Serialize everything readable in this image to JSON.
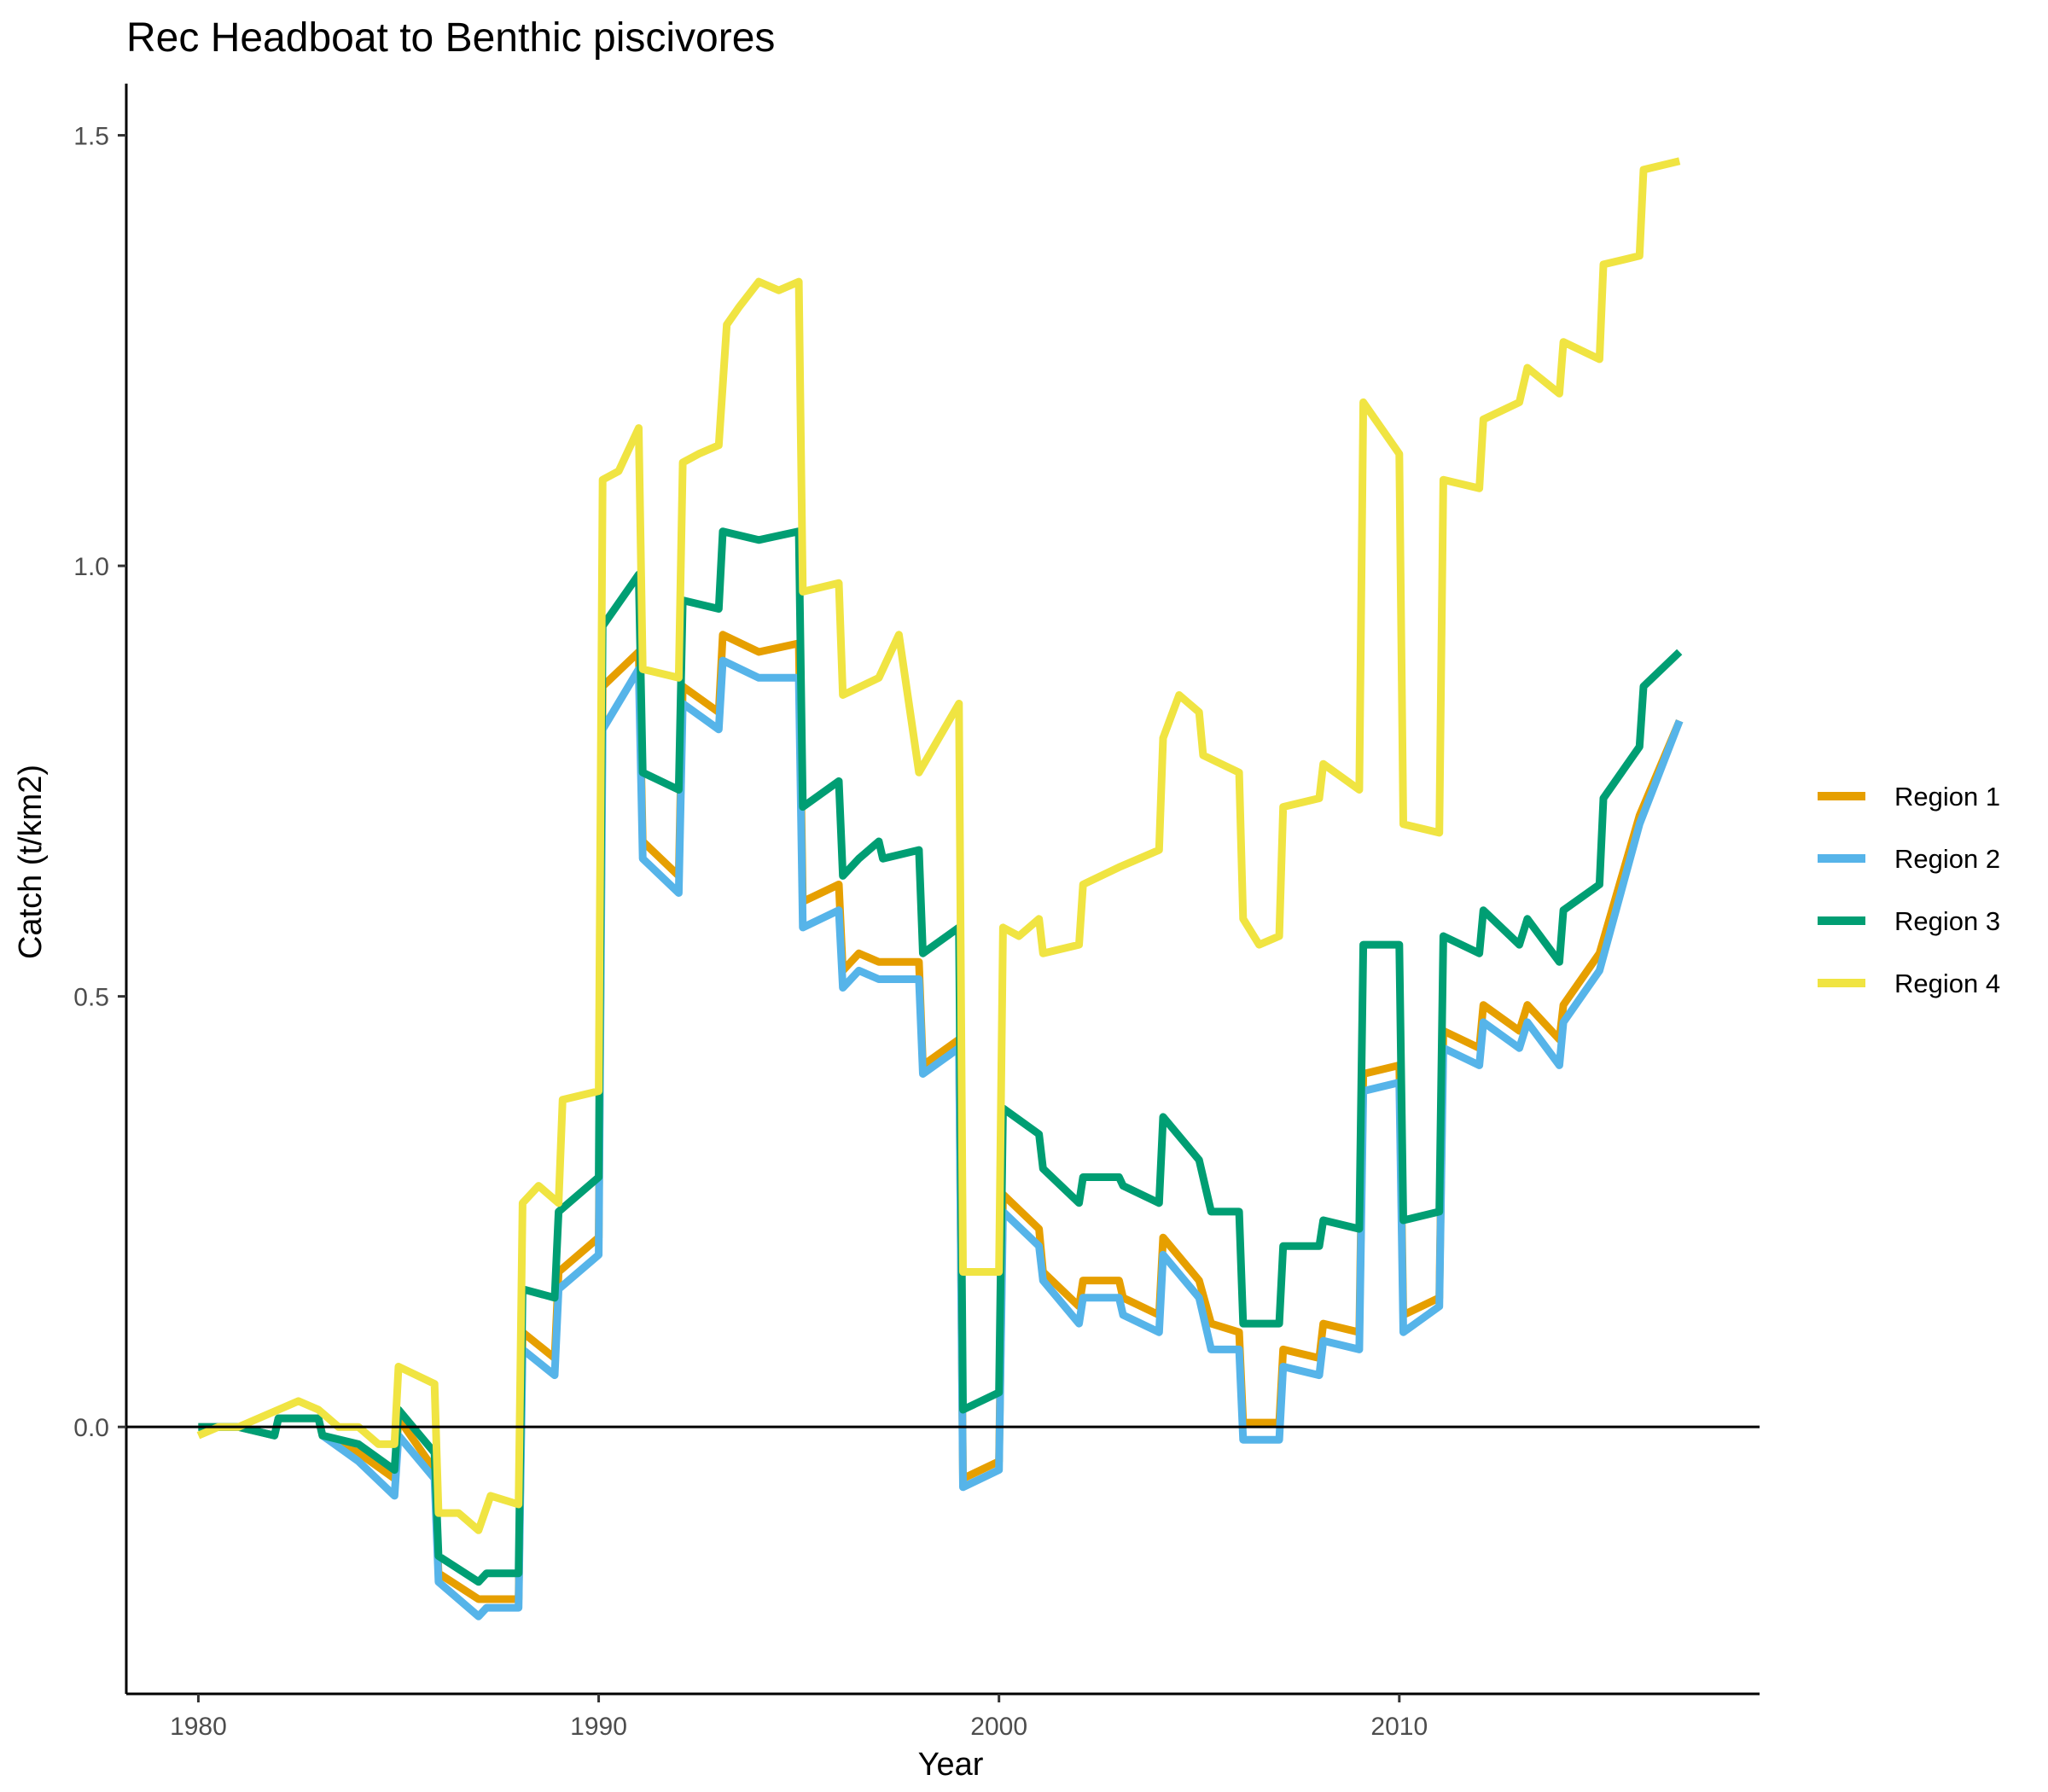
{
  "chart_data": {
    "type": "line",
    "title": "Rec Headboat to Benthic piscivores",
    "xlabel": "Year",
    "ylabel": "Catch (t/km2)",
    "xlim": [
      1978.2,
      2019
    ],
    "ylim": [
      -0.31,
      1.56
    ],
    "x_ticks": [
      1980,
      1990,
      2000,
      2010
    ],
    "y_ticks": [
      0.0,
      0.5,
      1.0,
      1.5
    ],
    "x_tick_labels": [
      "1980",
      "1990",
      "2000",
      "2010"
    ],
    "y_tick_labels": [
      "0.0",
      "0.5",
      "1.0",
      "1.5"
    ],
    "reference_line_y": 0,
    "grid": false,
    "legend_position": "right",
    "series": [
      {
        "name": "Region 1",
        "color": "#E69F00",
        "points": [
          [
            1980,
            0
          ],
          [
            1981,
            0
          ],
          [
            1981.9,
            -0.01
          ],
          [
            1982,
            0.01
          ],
          [
            1983,
            0.01
          ],
          [
            1983.1,
            -0.01
          ],
          [
            1984,
            -0.03
          ],
          [
            1984.9,
            -0.06
          ],
          [
            1985,
            0.01
          ],
          [
            1985.9,
            -0.05
          ],
          [
            1986,
            -0.17
          ],
          [
            1987,
            -0.2
          ],
          [
            1988,
            -0.2
          ],
          [
            1988.1,
            0.11
          ],
          [
            1988.9,
            0.08
          ],
          [
            1989,
            0.18
          ],
          [
            1990,
            0.22
          ],
          [
            1990.1,
            0.86
          ],
          [
            1991,
            0.9
          ],
          [
            1991.1,
            0.68
          ],
          [
            1992,
            0.64
          ],
          [
            1992.1,
            0.86
          ],
          [
            1993,
            0.83
          ],
          [
            1993.1,
            0.92
          ],
          [
            1994,
            0.9
          ],
          [
            1995,
            0.91
          ],
          [
            1995.1,
            0.61
          ],
          [
            1996,
            0.63
          ],
          [
            1996.1,
            0.53
          ],
          [
            1996.5,
            0.55
          ],
          [
            1997,
            0.54
          ],
          [
            1998,
            0.54
          ],
          [
            1998.1,
            0.42
          ],
          [
            1999,
            0.45
          ],
          [
            1999.1,
            -0.06
          ],
          [
            2000,
            -0.04
          ],
          [
            2000.1,
            0.27
          ],
          [
            2001,
            0.23
          ],
          [
            2001.1,
            0.18
          ],
          [
            2002,
            0.14
          ],
          [
            2002.1,
            0.17
          ],
          [
            2003,
            0.17
          ],
          [
            2003.1,
            0.15
          ],
          [
            2004,
            0.13
          ],
          [
            2004.1,
            0.22
          ],
          [
            2005,
            0.17
          ],
          [
            2005.3,
            0.12
          ],
          [
            2006,
            0.11
          ],
          [
            2006.1,
            0.005
          ],
          [
            2007,
            0.005
          ],
          [
            2007.1,
            0.09
          ],
          [
            2008,
            0.08
          ],
          [
            2008.1,
            0.12
          ],
          [
            2009,
            0.11
          ],
          [
            2009.1,
            0.41
          ],
          [
            2010,
            0.42
          ],
          [
            2010.1,
            0.13
          ],
          [
            2011,
            0.15
          ],
          [
            2011.1,
            0.46
          ],
          [
            2012,
            0.44
          ],
          [
            2012.1,
            0.49
          ],
          [
            2013,
            0.46
          ],
          [
            2013.2,
            0.49
          ],
          [
            2014,
            0.45
          ],
          [
            2014.1,
            0.49
          ],
          [
            2015,
            0.55
          ],
          [
            2016,
            0.71
          ],
          [
            2017,
            0.82
          ]
        ]
      },
      {
        "name": "Region 2",
        "color": "#56B4E9",
        "points": [
          [
            1980,
            0
          ],
          [
            1981,
            0
          ],
          [
            1981.9,
            -0.01
          ],
          [
            1982,
            0.01
          ],
          [
            1983,
            0.01
          ],
          [
            1983.1,
            -0.01
          ],
          [
            1984,
            -0.04
          ],
          [
            1984.9,
            -0.08
          ],
          [
            1985,
            -0.01
          ],
          [
            1985.9,
            -0.06
          ],
          [
            1986,
            -0.18
          ],
          [
            1987,
            -0.22
          ],
          [
            1987.2,
            -0.21
          ],
          [
            1988,
            -0.21
          ],
          [
            1988.1,
            0.09
          ],
          [
            1988.9,
            0.06
          ],
          [
            1989,
            0.16
          ],
          [
            1990,
            0.2
          ],
          [
            1990.1,
            0.81
          ],
          [
            1991,
            0.88
          ],
          [
            1991.1,
            0.66
          ],
          [
            1992,
            0.62
          ],
          [
            1992.1,
            0.84
          ],
          [
            1993,
            0.81
          ],
          [
            1993.1,
            0.89
          ],
          [
            1994,
            0.87
          ],
          [
            1995,
            0.87
          ],
          [
            1995.1,
            0.58
          ],
          [
            1996,
            0.6
          ],
          [
            1996.1,
            0.51
          ],
          [
            1996.5,
            0.53
          ],
          [
            1997,
            0.52
          ],
          [
            1998,
            0.52
          ],
          [
            1998.1,
            0.41
          ],
          [
            1999,
            0.44
          ],
          [
            1999.1,
            -0.07
          ],
          [
            2000,
            -0.05
          ],
          [
            2000.1,
            0.25
          ],
          [
            2001,
            0.21
          ],
          [
            2001.1,
            0.17
          ],
          [
            2002,
            0.12
          ],
          [
            2002.1,
            0.15
          ],
          [
            2003,
            0.15
          ],
          [
            2003.1,
            0.13
          ],
          [
            2004,
            0.11
          ],
          [
            2004.1,
            0.2
          ],
          [
            2005,
            0.15
          ],
          [
            2005.3,
            0.09
          ],
          [
            2006,
            0.09
          ],
          [
            2006.1,
            -0.015
          ],
          [
            2007,
            -0.015
          ],
          [
            2007.1,
            0.07
          ],
          [
            2008,
            0.06
          ],
          [
            2008.1,
            0.1
          ],
          [
            2009,
            0.09
          ],
          [
            2009.1,
            0.39
          ],
          [
            2010,
            0.4
          ],
          [
            2010.1,
            0.11
          ],
          [
            2011,
            0.14
          ],
          [
            2011.1,
            0.44
          ],
          [
            2012,
            0.42
          ],
          [
            2012.1,
            0.47
          ],
          [
            2013,
            0.44
          ],
          [
            2013.2,
            0.47
          ],
          [
            2014,
            0.42
          ],
          [
            2014.1,
            0.47
          ],
          [
            2015,
            0.53
          ],
          [
            2016,
            0.7
          ],
          [
            2017,
            0.82
          ]
        ]
      },
      {
        "name": "Region 3",
        "color": "#009E73",
        "points": [
          [
            1980,
            0
          ],
          [
            1981,
            0
          ],
          [
            1981.9,
            -0.01
          ],
          [
            1982,
            0.01
          ],
          [
            1983,
            0.01
          ],
          [
            1983.1,
            -0.01
          ],
          [
            1984,
            -0.02
          ],
          [
            1984.9,
            -0.05
          ],
          [
            1985,
            0.02
          ],
          [
            1985.9,
            -0.03
          ],
          [
            1986,
            -0.15
          ],
          [
            1987,
            -0.18
          ],
          [
            1987.2,
            -0.17
          ],
          [
            1988,
            -0.17
          ],
          [
            1988.1,
            0.16
          ],
          [
            1988.9,
            0.15
          ],
          [
            1989,
            0.25
          ],
          [
            1990,
            0.29
          ],
          [
            1990.1,
            0.93
          ],
          [
            1991,
            0.99
          ],
          [
            1991.1,
            0.76
          ],
          [
            1992,
            0.74
          ],
          [
            1992.1,
            0.96
          ],
          [
            1993,
            0.95
          ],
          [
            1993.1,
            1.04
          ],
          [
            1994,
            1.03
          ],
          [
            1995,
            1.04
          ],
          [
            1995.1,
            0.72
          ],
          [
            1996,
            0.75
          ],
          [
            1996.1,
            0.64
          ],
          [
            1996.5,
            0.66
          ],
          [
            1997,
            0.68
          ],
          [
            1997.1,
            0.66
          ],
          [
            1998,
            0.67
          ],
          [
            1998.1,
            0.55
          ],
          [
            1999,
            0.58
          ],
          [
            1999.1,
            0.02
          ],
          [
            2000,
            0.04
          ],
          [
            2000.1,
            0.37
          ],
          [
            2001,
            0.34
          ],
          [
            2001.1,
            0.3
          ],
          [
            2002,
            0.26
          ],
          [
            2002.1,
            0.29
          ],
          [
            2003,
            0.29
          ],
          [
            2003.1,
            0.28
          ],
          [
            2004,
            0.26
          ],
          [
            2004.1,
            0.36
          ],
          [
            2005,
            0.31
          ],
          [
            2005.3,
            0.25
          ],
          [
            2006,
            0.25
          ],
          [
            2006.1,
            0.12
          ],
          [
            2007,
            0.12
          ],
          [
            2007.1,
            0.21
          ],
          [
            2008,
            0.21
          ],
          [
            2008.1,
            0.24
          ],
          [
            2009,
            0.23
          ],
          [
            2009.1,
            0.56
          ],
          [
            2010,
            0.56
          ],
          [
            2010.1,
            0.24
          ],
          [
            2011,
            0.25
          ],
          [
            2011.1,
            0.57
          ],
          [
            2012,
            0.55
          ],
          [
            2012.1,
            0.6
          ],
          [
            2013,
            0.56
          ],
          [
            2013.2,
            0.59
          ],
          [
            2014,
            0.54
          ],
          [
            2014.1,
            0.6
          ],
          [
            2015,
            0.63
          ],
          [
            2015.1,
            0.73
          ],
          [
            2016,
            0.79
          ],
          [
            2016.1,
            0.86
          ],
          [
            2017,
            0.9
          ]
        ]
      },
      {
        "name": "Region 4",
        "color": "#F0E442",
        "points": [
          [
            1980,
            -0.01
          ],
          [
            1980.5,
            0
          ],
          [
            1981,
            0
          ],
          [
            1981.5,
            0.01
          ],
          [
            1982,
            0.02
          ],
          [
            1982.5,
            0.03
          ],
          [
            1983,
            0.02
          ],
          [
            1983.5,
            0
          ],
          [
            1984,
            0
          ],
          [
            1984.5,
            -0.02
          ],
          [
            1984.9,
            -0.02
          ],
          [
            1985,
            0.07
          ],
          [
            1985.9,
            0.05
          ],
          [
            1986,
            -0.1
          ],
          [
            1986.5,
            -0.1
          ],
          [
            1987,
            -0.12
          ],
          [
            1987.3,
            -0.08
          ],
          [
            1988,
            -0.09
          ],
          [
            1988.1,
            0.26
          ],
          [
            1988.5,
            0.28
          ],
          [
            1989,
            0.26
          ],
          [
            1989.1,
            0.38
          ],
          [
            1990,
            0.39
          ],
          [
            1990.1,
            1.1
          ],
          [
            1990.5,
            1.11
          ],
          [
            1991,
            1.16
          ],
          [
            1991.1,
            0.88
          ],
          [
            1992,
            0.87
          ],
          [
            1992.1,
            1.12
          ],
          [
            1992.5,
            1.13
          ],
          [
            1993,
            1.14
          ],
          [
            1993.2,
            1.28
          ],
          [
            1993.5,
            1.3
          ],
          [
            1994,
            1.33
          ],
          [
            1994.5,
            1.32
          ],
          [
            1995,
            1.33
          ],
          [
            1995.1,
            0.97
          ],
          [
            1996,
            0.98
          ],
          [
            1996.1,
            0.85
          ],
          [
            1997,
            0.87
          ],
          [
            1997.5,
            0.92
          ],
          [
            1998,
            0.76
          ],
          [
            1998.5,
            0.8
          ],
          [
            1999,
            0.84
          ],
          [
            1999.1,
            0.18
          ],
          [
            2000,
            0.18
          ],
          [
            2000.1,
            0.58
          ],
          [
            2000.5,
            0.57
          ],
          [
            2001,
            0.59
          ],
          [
            2001.1,
            0.55
          ],
          [
            2002,
            0.56
          ],
          [
            2002.1,
            0.63
          ],
          [
            2003,
            0.65
          ],
          [
            2004,
            0.67
          ],
          [
            2004.1,
            0.8
          ],
          [
            2004.5,
            0.85
          ],
          [
            2005,
            0.83
          ],
          [
            2005.1,
            0.78
          ],
          [
            2006,
            0.76
          ],
          [
            2006.1,
            0.59
          ],
          [
            2006.5,
            0.56
          ],
          [
            2007,
            0.57
          ],
          [
            2007.1,
            0.72
          ],
          [
            2008,
            0.73
          ],
          [
            2008.1,
            0.77
          ],
          [
            2009,
            0.74
          ],
          [
            2009.1,
            1.19
          ],
          [
            2010,
            1.13
          ],
          [
            2010.1,
            0.7
          ],
          [
            2011,
            0.69
          ],
          [
            2011.1,
            1.1
          ],
          [
            2012,
            1.09
          ],
          [
            2012.1,
            1.17
          ],
          [
            2013,
            1.19
          ],
          [
            2013.2,
            1.23
          ],
          [
            2014,
            1.2
          ],
          [
            2014.1,
            1.26
          ],
          [
            2015,
            1.24
          ],
          [
            2015.1,
            1.35
          ],
          [
            2016,
            1.36
          ],
          [
            2016.1,
            1.46
          ],
          [
            2017,
            1.47
          ]
        ]
      }
    ]
  }
}
